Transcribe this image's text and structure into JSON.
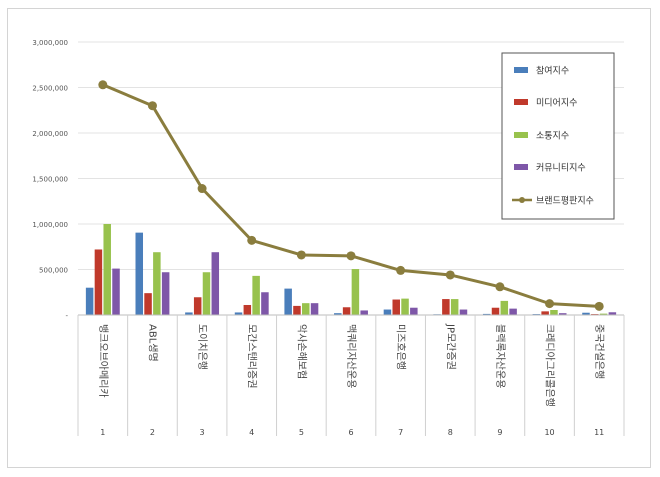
{
  "chart_data": {
    "type": "bar",
    "categories": [
      "1",
      "2",
      "3",
      "4",
      "5",
      "6",
      "7",
      "8",
      "9",
      "10",
      "11"
    ],
    "category_names": [
      "뱅크오브아메리카",
      "ABL생명",
      "도이치은행",
      "모간스탠리증권",
      "악사손해보험",
      "맥쿼리자산운용",
      "미즈호은행",
      "JP모간증권",
      "블랙록자산운용",
      "크레디아그리콜은행",
      "중국건설은행"
    ],
    "series": [
      {
        "name": "참여지수",
        "type": "bar",
        "color": "#4a7ebb",
        "values": [
          300000,
          905000,
          28000,
          28000,
          290000,
          20000,
          60000,
          8000,
          12000,
          10000,
          25000
        ]
      },
      {
        "name": "미디어지수",
        "type": "bar",
        "color": "#c0392b",
        "values": [
          720000,
          240000,
          195000,
          110000,
          100000,
          85000,
          170000,
          175000,
          80000,
          40000,
          10000
        ]
      },
      {
        "name": "소통지수",
        "type": "bar",
        "color": "#98c24d",
        "values": [
          1000000,
          690000,
          470000,
          430000,
          130000,
          505000,
          180000,
          175000,
          155000,
          55000,
          15000
        ]
      },
      {
        "name": "커뮤니티지수",
        "type": "bar",
        "color": "#7e57a8",
        "values": [
          510000,
          470000,
          690000,
          250000,
          130000,
          50000,
          80000,
          60000,
          70000,
          20000,
          30000
        ]
      },
      {
        "name": "브랜드평판지수",
        "type": "line",
        "color": "#8a7d3e",
        "values": [
          2530000,
          2300000,
          1390000,
          820000,
          660000,
          650000,
          490000,
          440000,
          310000,
          125000,
          95000
        ]
      }
    ],
    "ylim": [
      0,
      3000000
    ],
    "yticks": [
      0,
      500000,
      1000000,
      1500000,
      2000000,
      2500000,
      3000000
    ],
    "ytick_labels": [
      "-",
      "500,000",
      "1,000,000",
      "1,500,000",
      "2,000,000",
      "2,500,000",
      "3,000,000"
    ],
    "grid": true,
    "legend_position": "top-right"
  }
}
